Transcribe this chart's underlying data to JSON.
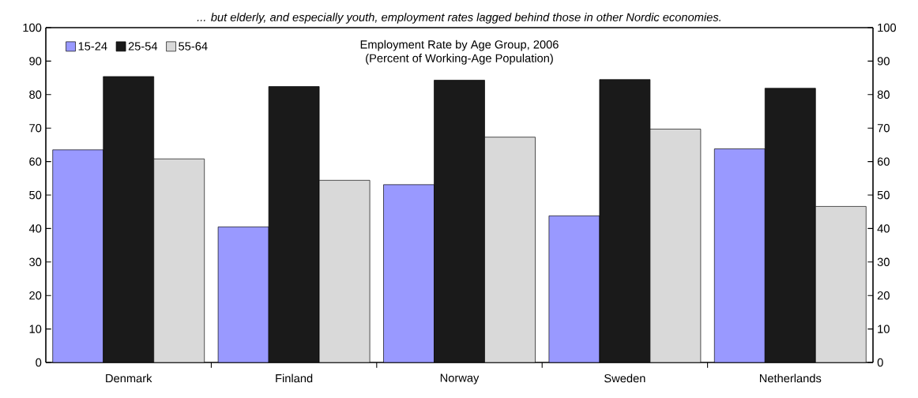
{
  "chart_data": {
    "type": "bar",
    "title": "Employment Rate by Age Group, 2006",
    "subtitle": "(Percent of Working-Age Population)",
    "annotations": [
      "... but elderly, and especially youth, employment rates lagged behind those in other Nordic economies."
    ],
    "categories": [
      "Denmark",
      "Finland",
      "Norway",
      "Sweden",
      "Netherlands"
    ],
    "series": [
      {
        "name": "15-24",
        "color": "#9999ff",
        "values": [
          63.5,
          40.5,
          53.1,
          43.8,
          63.8
        ]
      },
      {
        "name": "25-54",
        "color": "#1a1a1a",
        "values": [
          85.4,
          82.4,
          84.3,
          84.5,
          81.9
        ]
      },
      {
        "name": "55-64",
        "color": "#d9d9d9",
        "values": [
          60.8,
          54.4,
          67.3,
          69.7,
          46.6
        ]
      }
    ],
    "ylim": [
      0,
      100
    ],
    "yticks": [
      0,
      10,
      20,
      30,
      40,
      50,
      60,
      70,
      80,
      90,
      100
    ],
    "y2lim": [
      0,
      100
    ],
    "y2ticks": [
      0,
      10,
      20,
      30,
      40,
      50,
      60,
      70,
      80,
      90,
      100
    ],
    "grid": false,
    "legend": "top left"
  }
}
